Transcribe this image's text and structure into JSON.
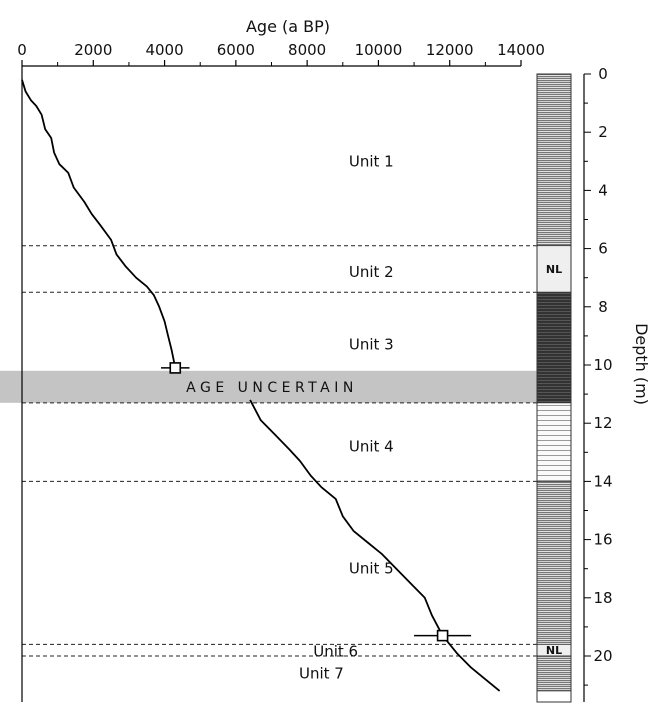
{
  "colors": {
    "band": "#c4c4c4",
    "stripe_light": "#f5f5f5",
    "stripe_mid_line": "#777777",
    "stripe_dark_line": "#2a2a2a",
    "nl_fill": "#efefef",
    "line": "#000000"
  },
  "chart_data": {
    "type": "line",
    "xlabel": "Age (a BP)",
    "ylabel": "Depth (m)",
    "xlim": [
      0,
      14000
    ],
    "ylim": [
      0,
      21
    ],
    "x_ticks": [
      "0",
      "2000",
      "4000",
      "6000",
      "8000",
      "10000",
      "12000",
      "14000"
    ],
    "y_ticks": [
      "0",
      "2",
      "4",
      "6",
      "8",
      "10",
      "12",
      "14",
      "16",
      "18",
      "20"
    ],
    "grid": false,
    "series": [
      {
        "values_upper": [
          [
            0,
            0.2
          ],
          [
            100,
            0.6
          ],
          [
            250,
            0.9
          ],
          [
            400,
            1.1
          ],
          [
            550,
            1.4
          ],
          [
            650,
            1.9
          ],
          [
            820,
            2.2
          ],
          [
            900,
            2.7
          ],
          [
            1050,
            3.1
          ],
          [
            1300,
            3.4
          ],
          [
            1450,
            3.9
          ],
          [
            1750,
            4.4
          ],
          [
            1950,
            4.8
          ],
          [
            2200,
            5.2
          ],
          [
            2500,
            5.7
          ],
          [
            2650,
            6.2
          ],
          [
            2900,
            6.6
          ],
          [
            3200,
            7.0
          ],
          [
            3500,
            7.3
          ],
          [
            3700,
            7.6
          ],
          [
            3850,
            8.0
          ],
          [
            4000,
            8.5
          ],
          [
            4100,
            9.0
          ],
          [
            4200,
            9.5
          ],
          [
            4300,
            10.1
          ]
        ],
        "values_lower": [
          [
            6400,
            11.2
          ],
          [
            6700,
            11.9
          ],
          [
            7100,
            12.4
          ],
          [
            7500,
            12.9
          ],
          [
            7800,
            13.3
          ],
          [
            8100,
            13.8
          ],
          [
            8400,
            14.2
          ],
          [
            8800,
            14.6
          ],
          [
            9000,
            15.2
          ],
          [
            9300,
            15.7
          ],
          [
            9700,
            16.1
          ],
          [
            10100,
            16.5
          ],
          [
            10500,
            17.0
          ],
          [
            10900,
            17.5
          ],
          [
            11300,
            18.0
          ],
          [
            11500,
            18.6
          ],
          [
            11800,
            19.3
          ],
          [
            12200,
            19.9
          ],
          [
            12600,
            20.4
          ],
          [
            13000,
            20.8
          ],
          [
            13400,
            21.2
          ]
        ]
      }
    ],
    "age_points": [
      {
        "age": 4300,
        "depth": 10.1,
        "err": 400
      },
      {
        "age": 11800,
        "depth": 19.3,
        "err": 800
      }
    ],
    "boundaries": [
      5.9,
      7.5,
      11.3,
      14.0,
      19.6,
      20.0
    ],
    "uncertain_band": [
      10.2,
      11.3
    ],
    "uncertain_label": "AGE UNCERTAIN",
    "units": [
      {
        "label": "Unit 1",
        "depth": 3.0,
        "age": 9800
      },
      {
        "label": "Unit 2",
        "depth": 6.8,
        "age": 9800
      },
      {
        "label": "Unit 3",
        "depth": 9.3,
        "age": 9800
      },
      {
        "label": "Unit 4",
        "depth": 12.8,
        "age": 9800
      },
      {
        "label": "Unit 5",
        "depth": 17.0,
        "age": 9800
      },
      {
        "label": "Unit 6",
        "depth": 19.85,
        "age": 8800
      },
      {
        "label": "Unit 7",
        "depth": 20.6,
        "age": 8400
      }
    ],
    "column": [
      {
        "top": 0,
        "bottom": 5.9,
        "style": "medium"
      },
      {
        "top": 5.9,
        "bottom": 7.5,
        "style": "nl",
        "label": "NL"
      },
      {
        "top": 7.5,
        "bottom": 11.3,
        "style": "dark"
      },
      {
        "top": 11.3,
        "bottom": 14.0,
        "style": "light"
      },
      {
        "top": 14.0,
        "bottom": 19.6,
        "style": "medium"
      },
      {
        "top": 19.6,
        "bottom": 20.0,
        "style": "nl",
        "label": "NL"
      },
      {
        "top": 20.0,
        "bottom": 21.2,
        "style": "medium"
      }
    ]
  }
}
